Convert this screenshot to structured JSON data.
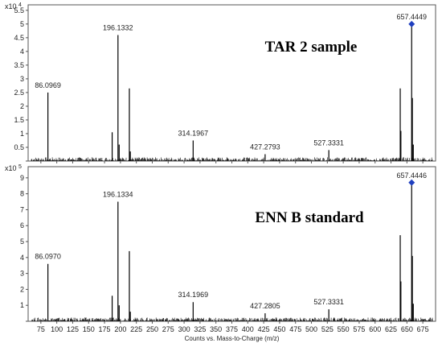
{
  "chart_data": [
    {
      "type": "line",
      "title": "TAR 2 sample",
      "y_exponent_label": "x10 4",
      "ylim": [
        0,
        5.7
      ],
      "yticks": [
        0,
        0.5,
        1,
        1.5,
        2,
        2.5,
        3,
        3.5,
        4,
        4.5,
        5,
        5.5
      ],
      "xlim": [
        55,
        695
      ],
      "xticks": [
        75,
        100,
        125,
        150,
        175,
        200,
        225,
        250,
        275,
        300,
        325,
        350,
        375,
        400,
        425,
        450,
        475,
        500,
        525,
        550,
        575,
        600,
        625,
        650,
        675
      ],
      "xlabel": "",
      "ylabel": "",
      "grid": false,
      "peaks": [
        {
          "x": 86.0969,
          "y": 2.5
        },
        {
          "x": 187,
          "y": 1.05
        },
        {
          "x": 196.1332,
          "y": 4.6
        },
        {
          "x": 198,
          "y": 0.6
        },
        {
          "x": 214,
          "y": 2.65
        },
        {
          "x": 215.5,
          "y": 0.35
        },
        {
          "x": 314.1967,
          "y": 0.75
        },
        {
          "x": 427.2793,
          "y": 0.25
        },
        {
          "x": 527.3331,
          "y": 0.4
        },
        {
          "x": 639.5,
          "y": 2.65
        },
        {
          "x": 640.5,
          "y": 1.1
        },
        {
          "x": 657.4449,
          "y": 5.0
        },
        {
          "x": 658.5,
          "y": 2.3
        },
        {
          "x": 660,
          "y": 0.6
        }
      ],
      "peak_labels": [
        {
          "x": 86.0969,
          "y": 2.5,
          "text": "86.0969"
        },
        {
          "x": 196.1332,
          "y": 4.6,
          "text": "196.1332"
        },
        {
          "x": 314.1967,
          "y": 0.75,
          "text": "314.1967"
        },
        {
          "x": 427.2793,
          "y": 0.25,
          "text": "427.2793"
        },
        {
          "x": 527.3331,
          "y": 0.4,
          "text": "527.3331"
        },
        {
          "x": 657.4449,
          "y": 5.0,
          "text": "657.4449"
        }
      ],
      "marker": {
        "x": 657.4449,
        "y": 5.0,
        "color": "#1f3fbf"
      }
    },
    {
      "type": "line",
      "title": "ENN B standard",
      "y_exponent_label": "x10 5",
      "ylim": [
        0,
        9.7
      ],
      "yticks": [
        0,
        1,
        2,
        3,
        4,
        5,
        6,
        7,
        8,
        9
      ],
      "xlim": [
        55,
        695
      ],
      "xticks": [
        75,
        100,
        125,
        150,
        175,
        200,
        225,
        250,
        275,
        300,
        325,
        350,
        375,
        400,
        425,
        450,
        475,
        500,
        525,
        550,
        575,
        600,
        625,
        650,
        675
      ],
      "xlabel": "Counts vs. Mass-to-Charge (m/z)",
      "ylabel": "",
      "grid": false,
      "peaks": [
        {
          "x": 86.097,
          "y": 3.6
        },
        {
          "x": 187,
          "y": 1.6
        },
        {
          "x": 196.1334,
          "y": 7.5
        },
        {
          "x": 198,
          "y": 1.0
        },
        {
          "x": 214,
          "y": 4.4
        },
        {
          "x": 215.5,
          "y": 0.6
        },
        {
          "x": 314.1969,
          "y": 1.2
        },
        {
          "x": 427.2805,
          "y": 0.5
        },
        {
          "x": 527.3331,
          "y": 0.75
        },
        {
          "x": 639.5,
          "y": 5.4
        },
        {
          "x": 640.5,
          "y": 2.5
        },
        {
          "x": 657.4446,
          "y": 8.7
        },
        {
          "x": 658.5,
          "y": 4.1
        },
        {
          "x": 660,
          "y": 1.1
        }
      ],
      "peak_labels": [
        {
          "x": 86.097,
          "y": 3.6,
          "text": "86.0970"
        },
        {
          "x": 196.1334,
          "y": 7.5,
          "text": "196.1334"
        },
        {
          "x": 314.1969,
          "y": 1.2,
          "text": "314.1969"
        },
        {
          "x": 427.2805,
          "y": 0.5,
          "text": "427.2805"
        },
        {
          "x": 527.3331,
          "y": 0.75,
          "text": "527.3331"
        },
        {
          "x": 657.4446,
          "y": 8.7,
          "text": "657.4446"
        }
      ],
      "marker": {
        "x": 657.4446,
        "y": 8.7,
        "color": "#1f3fbf"
      }
    }
  ],
  "colors": {
    "trace": "#000000",
    "axis": "#555555",
    "marker": "#1f3fbf"
  }
}
